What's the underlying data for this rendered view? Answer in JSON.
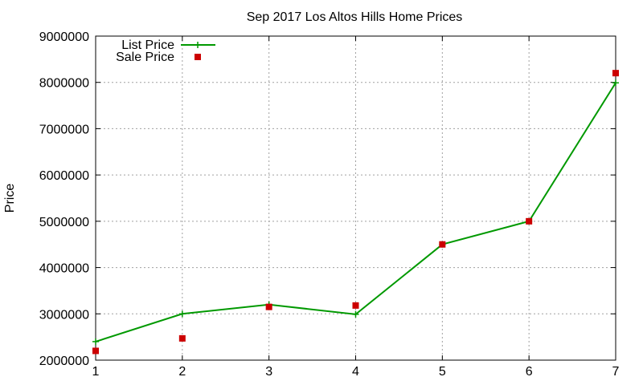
{
  "chart_data": {
    "type": "line",
    "title": "Sep 2017 Los Altos Hills Home Prices",
    "xlabel": "",
    "ylabel": "Price",
    "x": [
      1,
      2,
      3,
      4,
      5,
      6,
      7
    ],
    "xlim": [
      1,
      7
    ],
    "ylim": [
      2000000,
      9000000
    ],
    "xticks": [
      "1",
      "2",
      "3",
      "4",
      "5",
      "6",
      "7"
    ],
    "yticks": [
      "2000000",
      "3000000",
      "4000000",
      "5000000",
      "6000000",
      "7000000",
      "8000000",
      "9000000"
    ],
    "grid": true,
    "legend_position": "top-left",
    "series": [
      {
        "name": "List Price",
        "style": "line-with-plus-markers",
        "color": "#009900",
        "values": [
          2400000,
          3000000,
          3200000,
          2990000,
          4500000,
          5000000,
          7990000
        ]
      },
      {
        "name": "Sale Price",
        "style": "square-markers",
        "color": "#cc0000",
        "values": [
          2200000,
          2470000,
          3150000,
          3180000,
          4500000,
          5000000,
          8200000
        ]
      }
    ]
  }
}
